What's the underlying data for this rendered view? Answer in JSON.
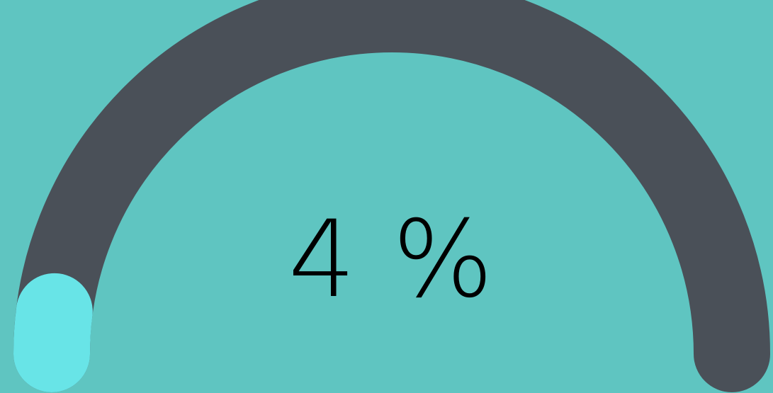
{
  "gauge": {
    "value": 4,
    "min": 0,
    "max": 100,
    "label": "4 %"
  },
  "colors": {
    "background": "#5fc5c1",
    "track": "#4a5058",
    "progress": "#68e4e7",
    "text": "#000000"
  }
}
